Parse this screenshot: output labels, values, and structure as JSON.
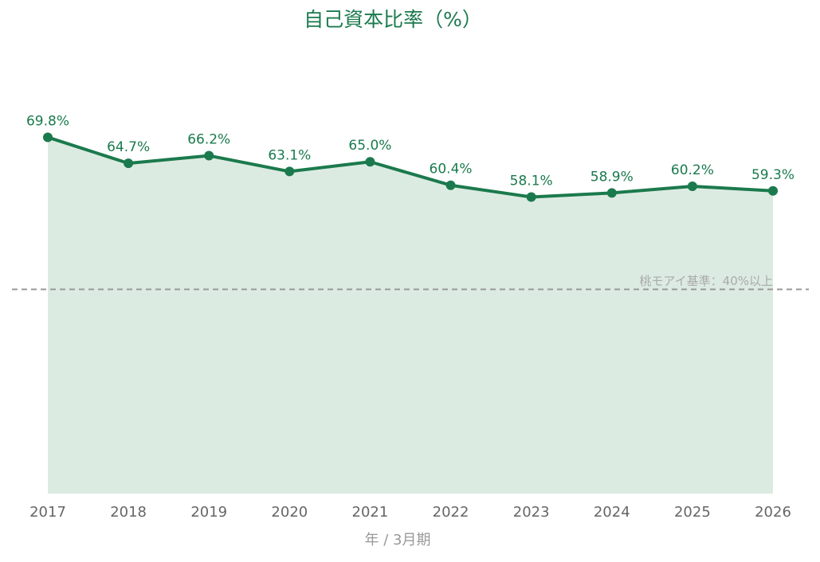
{
  "chart_data": {
    "type": "line",
    "title": "自己資本比率（%）",
    "x_label": "年 / 3月期",
    "categories": [
      "2017",
      "2018",
      "2019",
      "2020",
      "2021",
      "2022",
      "2023",
      "2024",
      "2025",
      "2026"
    ],
    "values": [
      69.8,
      64.7,
      66.2,
      63.1,
      65.0,
      60.4,
      58.1,
      58.9,
      60.2,
      59.3
    ],
    "value_labels": [
      "69.8%",
      "64.7%",
      "66.2%",
      "63.1%",
      "65.0%",
      "60.4%",
      "58.1%",
      "58.9%",
      "60.2%",
      "59.3%"
    ],
    "color": "#1b7a4d",
    "area_color": "#dcebe2",
    "ylim": [
      0,
      85
    ],
    "reference_line": {
      "value": 40,
      "label": "桃モアイ基準：40%以上",
      "color": "#999999"
    }
  }
}
